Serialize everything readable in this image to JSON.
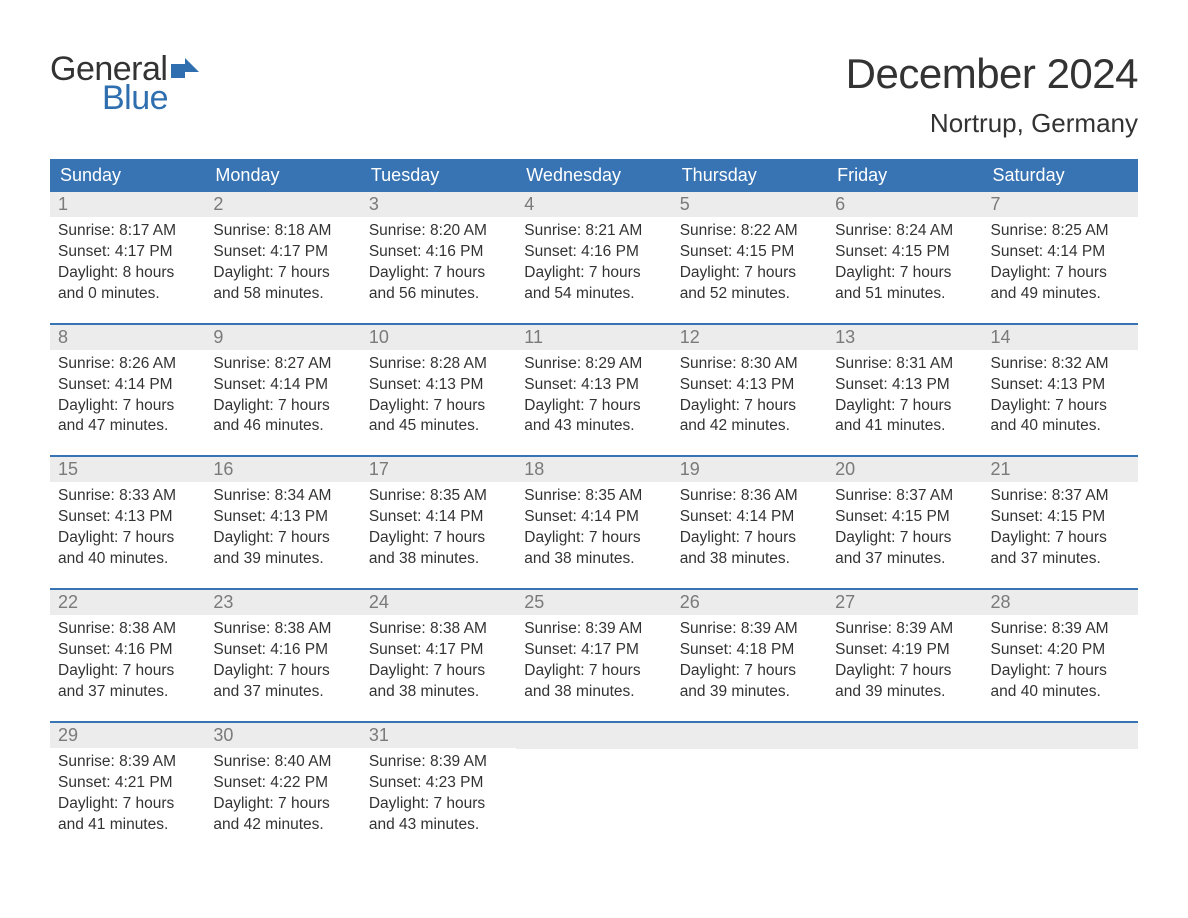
{
  "logo": {
    "text1": "General",
    "text2": "Blue",
    "flag_color": "#2f6fb0"
  },
  "title": "December 2024",
  "location": "Nortrup, Germany",
  "colors": {
    "header_bg": "#3874b3",
    "header_text": "#ffffff",
    "daynum_bg": "#ececec",
    "daynum_text": "#7a7a7a",
    "body_text": "#333333",
    "week_border": "#3874b3",
    "background": "#ffffff",
    "logo_blue": "#2f6fb0"
  },
  "typography": {
    "title_fontsize": 42,
    "location_fontsize": 26,
    "dayhead_fontsize": 18,
    "daynum_fontsize": 18,
    "content_fontsize": 15.5,
    "font_family": "Arial"
  },
  "day_headers": [
    "Sunday",
    "Monday",
    "Tuesday",
    "Wednesday",
    "Thursday",
    "Friday",
    "Saturday"
  ],
  "weeks": [
    [
      {
        "n": "1",
        "sunrise": "8:17 AM",
        "sunset": "4:17 PM",
        "daylight": "8 hours and 0 minutes."
      },
      {
        "n": "2",
        "sunrise": "8:18 AM",
        "sunset": "4:17 PM",
        "daylight": "7 hours and 58 minutes."
      },
      {
        "n": "3",
        "sunrise": "8:20 AM",
        "sunset": "4:16 PM",
        "daylight": "7 hours and 56 minutes."
      },
      {
        "n": "4",
        "sunrise": "8:21 AM",
        "sunset": "4:16 PM",
        "daylight": "7 hours and 54 minutes."
      },
      {
        "n": "5",
        "sunrise": "8:22 AM",
        "sunset": "4:15 PM",
        "daylight": "7 hours and 52 minutes."
      },
      {
        "n": "6",
        "sunrise": "8:24 AM",
        "sunset": "4:15 PM",
        "daylight": "7 hours and 51 minutes."
      },
      {
        "n": "7",
        "sunrise": "8:25 AM",
        "sunset": "4:14 PM",
        "daylight": "7 hours and 49 minutes."
      }
    ],
    [
      {
        "n": "8",
        "sunrise": "8:26 AM",
        "sunset": "4:14 PM",
        "daylight": "7 hours and 47 minutes."
      },
      {
        "n": "9",
        "sunrise": "8:27 AM",
        "sunset": "4:14 PM",
        "daylight": "7 hours and 46 minutes."
      },
      {
        "n": "10",
        "sunrise": "8:28 AM",
        "sunset": "4:13 PM",
        "daylight": "7 hours and 45 minutes."
      },
      {
        "n": "11",
        "sunrise": "8:29 AM",
        "sunset": "4:13 PM",
        "daylight": "7 hours and 43 minutes."
      },
      {
        "n": "12",
        "sunrise": "8:30 AM",
        "sunset": "4:13 PM",
        "daylight": "7 hours and 42 minutes."
      },
      {
        "n": "13",
        "sunrise": "8:31 AM",
        "sunset": "4:13 PM",
        "daylight": "7 hours and 41 minutes."
      },
      {
        "n": "14",
        "sunrise": "8:32 AM",
        "sunset": "4:13 PM",
        "daylight": "7 hours and 40 minutes."
      }
    ],
    [
      {
        "n": "15",
        "sunrise": "8:33 AM",
        "sunset": "4:13 PM",
        "daylight": "7 hours and 40 minutes."
      },
      {
        "n": "16",
        "sunrise": "8:34 AM",
        "sunset": "4:13 PM",
        "daylight": "7 hours and 39 minutes."
      },
      {
        "n": "17",
        "sunrise": "8:35 AM",
        "sunset": "4:14 PM",
        "daylight": "7 hours and 38 minutes."
      },
      {
        "n": "18",
        "sunrise": "8:35 AM",
        "sunset": "4:14 PM",
        "daylight": "7 hours and 38 minutes."
      },
      {
        "n": "19",
        "sunrise": "8:36 AM",
        "sunset": "4:14 PM",
        "daylight": "7 hours and 38 minutes."
      },
      {
        "n": "20",
        "sunrise": "8:37 AM",
        "sunset": "4:15 PM",
        "daylight": "7 hours and 37 minutes."
      },
      {
        "n": "21",
        "sunrise": "8:37 AM",
        "sunset": "4:15 PM",
        "daylight": "7 hours and 37 minutes."
      }
    ],
    [
      {
        "n": "22",
        "sunrise": "8:38 AM",
        "sunset": "4:16 PM",
        "daylight": "7 hours and 37 minutes."
      },
      {
        "n": "23",
        "sunrise": "8:38 AM",
        "sunset": "4:16 PM",
        "daylight": "7 hours and 37 minutes."
      },
      {
        "n": "24",
        "sunrise": "8:38 AM",
        "sunset": "4:17 PM",
        "daylight": "7 hours and 38 minutes."
      },
      {
        "n": "25",
        "sunrise": "8:39 AM",
        "sunset": "4:17 PM",
        "daylight": "7 hours and 38 minutes."
      },
      {
        "n": "26",
        "sunrise": "8:39 AM",
        "sunset": "4:18 PM",
        "daylight": "7 hours and 39 minutes."
      },
      {
        "n": "27",
        "sunrise": "8:39 AM",
        "sunset": "4:19 PM",
        "daylight": "7 hours and 39 minutes."
      },
      {
        "n": "28",
        "sunrise": "8:39 AM",
        "sunset": "4:20 PM",
        "daylight": "7 hours and 40 minutes."
      }
    ],
    [
      {
        "n": "29",
        "sunrise": "8:39 AM",
        "sunset": "4:21 PM",
        "daylight": "7 hours and 41 minutes."
      },
      {
        "n": "30",
        "sunrise": "8:40 AM",
        "sunset": "4:22 PM",
        "daylight": "7 hours and 42 minutes."
      },
      {
        "n": "31",
        "sunrise": "8:39 AM",
        "sunset": "4:23 PM",
        "daylight": "7 hours and 43 minutes."
      },
      null,
      null,
      null,
      null
    ]
  ],
  "labels": {
    "sunrise_prefix": "Sunrise: ",
    "sunset_prefix": "Sunset: ",
    "daylight_prefix": "Daylight: "
  }
}
